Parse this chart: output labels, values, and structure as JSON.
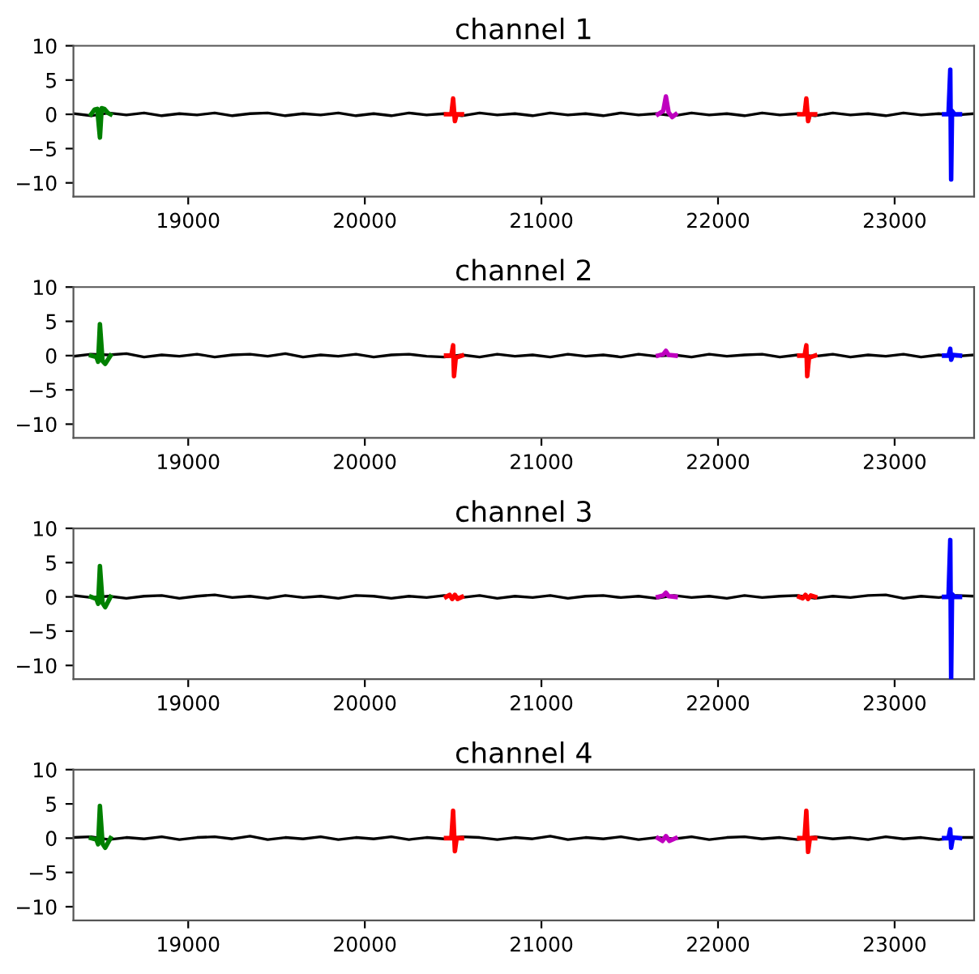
{
  "chart_data": [
    {
      "type": "line",
      "title": "channel 1",
      "xlim": [
        18350,
        23450
      ],
      "ylim": [
        -12,
        10
      ],
      "xticks": [
        19000,
        20000,
        21000,
        22000,
        23000
      ],
      "yticks": [
        10,
        5,
        0,
        -5,
        -10
      ],
      "series": [
        {
          "color": "#000000",
          "x": [
            18350,
            18450,
            18550,
            18650,
            18750,
            18850,
            18950,
            19050,
            19150,
            19250,
            19350,
            19450,
            19550,
            19650,
            19750,
            19850,
            19950,
            20050,
            20150,
            20250,
            20350,
            20450,
            20550,
            20650,
            20750,
            20850,
            20950,
            21050,
            21150,
            21250,
            21350,
            21450,
            21550,
            21650,
            21750,
            21850,
            21950,
            22050,
            22150,
            22250,
            22350,
            22450,
            22550,
            22650,
            22750,
            22850,
            22950,
            23050,
            23150,
            23250,
            23350,
            23450
          ],
          "values": [
            0.1,
            -0.2,
            0.2,
            -0.1,
            0.2,
            -0.2,
            0.1,
            -0.1,
            0.2,
            -0.2,
            0.1,
            0.2,
            -0.2,
            0.1,
            -0.1,
            0.2,
            -0.2,
            0.1,
            -0.2,
            0.2,
            -0.1,
            0.1,
            -0.2,
            0.2,
            -0.1,
            0.1,
            -0.2,
            0.2,
            -0.1,
            0.1,
            -0.2,
            0.2,
            -0.1,
            0.1,
            -0.2,
            0.2,
            -0.1,
            0.1,
            -0.2,
            0.2,
            -0.1,
            0.1,
            -0.2,
            0.2,
            -0.1,
            0.1,
            -0.2,
            0.2,
            -0.1,
            0.1,
            -0.1,
            0.1
          ]
        },
        {
          "color": "#008000",
          "x": [
            18450,
            18470,
            18485,
            18500,
            18510,
            18525,
            18545,
            18560
          ],
          "values": [
            0,
            0.7,
            0.8,
            -3.4,
            0.9,
            0.8,
            0.2,
            0
          ]
        },
        {
          "color": "#ff0000",
          "x": [
            20460,
            20490,
            20500,
            20510,
            20520,
            20550,
            21500,
            22460,
            22490,
            22500,
            22510,
            22520,
            22550
          ],
          "values": [
            0,
            0,
            2.3,
            -1,
            0,
            0,
            null,
            0,
            0,
            2.3,
            -1,
            0,
            0
          ]
        },
        {
          "color": "#bf00bf",
          "x": [
            21660,
            21690,
            21705,
            21720,
            21740,
            21760
          ],
          "values": [
            0,
            0.5,
            2.6,
            0.3,
            -0.4,
            0
          ]
        },
        {
          "color": "#0000ff",
          "x": [
            23280,
            23305,
            23315,
            23320,
            23325,
            23340,
            23370
          ],
          "values": [
            0,
            0,
            6.5,
            -9.5,
            0.5,
            0,
            0
          ]
        }
      ]
    },
    {
      "type": "line",
      "title": "channel 2",
      "xlim": [
        18350,
        23450
      ],
      "ylim": [
        -12,
        10
      ],
      "xticks": [
        19000,
        20000,
        21000,
        22000,
        23000
      ],
      "yticks": [
        10,
        5,
        0,
        -5,
        -10
      ],
      "series": [
        {
          "color": "#000000",
          "x": [
            18350,
            18450,
            18550,
            18650,
            18750,
            18850,
            18950,
            19050,
            19150,
            19250,
            19350,
            19450,
            19550,
            19650,
            19750,
            19850,
            19950,
            20050,
            20150,
            20250,
            20350,
            20450,
            20550,
            20650,
            20750,
            20850,
            20950,
            21050,
            21150,
            21250,
            21350,
            21450,
            21550,
            21650,
            21750,
            21850,
            21950,
            22050,
            22150,
            22250,
            22350,
            22450,
            22550,
            22650,
            22750,
            22850,
            22950,
            23050,
            23150,
            23250,
            23350,
            23450
          ],
          "values": [
            -0.1,
            0.2,
            0.1,
            0.3,
            -0.2,
            0.1,
            -0.1,
            0.2,
            -0.2,
            0.1,
            0.2,
            -0.1,
            0.3,
            -0.2,
            0.1,
            -0.1,
            0.2,
            -0.2,
            0.1,
            0.2,
            -0.1,
            -0.2,
            0.1,
            -0.2,
            0.2,
            -0.1,
            0.1,
            -0.2,
            0.2,
            -0.1,
            0.1,
            -0.2,
            0.2,
            -0.1,
            0.1,
            -0.2,
            0.2,
            -0.1,
            0.1,
            0.2,
            -0.2,
            0.1,
            -0.1,
            0.2,
            -0.2,
            0.1,
            -0.1,
            0.2,
            -0.2,
            0.1,
            -0.1,
            0.1
          ]
        },
        {
          "color": "#008000",
          "x": [
            18450,
            18480,
            18490,
            18500,
            18515,
            18530,
            18560
          ],
          "values": [
            0,
            -0.2,
            -0.9,
            4.6,
            -0.8,
            -1.2,
            0
          ]
        },
        {
          "color": "#ff0000",
          "x": [
            20460,
            20490,
            20500,
            20505,
            20515,
            20550,
            21500,
            22460,
            22490,
            22500,
            22505,
            22515,
            22550
          ],
          "values": [
            0,
            0,
            1.5,
            -3,
            -0.3,
            0,
            null,
            0,
            0,
            1.5,
            -3,
            -0.3,
            0
          ]
        },
        {
          "color": "#bf00bf",
          "x": [
            21660,
            21690,
            21705,
            21720,
            21760
          ],
          "values": [
            0,
            0.2,
            0.7,
            0.1,
            0
          ]
        },
        {
          "color": "#0000ff",
          "x": [
            23280,
            23305,
            23315,
            23320,
            23330,
            23370
          ],
          "values": [
            0,
            0,
            1,
            -0.6,
            0.1,
            0
          ]
        }
      ]
    },
    {
      "type": "line",
      "title": "channel 3",
      "xlim": [
        18350,
        23450
      ],
      "ylim": [
        -12,
        10
      ],
      "xticks": [
        19000,
        20000,
        21000,
        22000,
        23000
      ],
      "yticks": [
        10,
        5,
        0,
        -5,
        -10
      ],
      "series": [
        {
          "color": "#000000",
          "x": [
            18350,
            18450,
            18550,
            18650,
            18750,
            18850,
            18950,
            19050,
            19150,
            19250,
            19350,
            19450,
            19550,
            19650,
            19750,
            19850,
            19950,
            20050,
            20150,
            20250,
            20350,
            20450,
            20550,
            20650,
            20750,
            20850,
            20950,
            21050,
            21150,
            21250,
            21350,
            21450,
            21550,
            21650,
            21750,
            21850,
            21950,
            22050,
            22150,
            22250,
            22350,
            22450,
            22550,
            22650,
            22750,
            22850,
            22950,
            23050,
            23150,
            23250,
            23350,
            23450
          ],
          "values": [
            0.2,
            -0.1,
            0.1,
            -0.2,
            0.1,
            0.2,
            -0.2,
            0.1,
            0.3,
            -0.1,
            0.1,
            -0.2,
            0.2,
            -0.1,
            0.1,
            -0.2,
            0.2,
            0.1,
            -0.2,
            0.1,
            -0.1,
            0.2,
            -0.1,
            0.2,
            -0.2,
            0.1,
            -0.1,
            0.2,
            -0.2,
            0.1,
            0.2,
            -0.1,
            0.1,
            -0.2,
            0.2,
            -0.1,
            0.1,
            -0.2,
            0.2,
            -0.1,
            0.1,
            0.2,
            -0.2,
            0.1,
            -0.1,
            0.2,
            0.3,
            -0.2,
            0.1,
            -0.1,
            0.2,
            0.1
          ]
        },
        {
          "color": "#008000",
          "x": [
            18450,
            18480,
            18490,
            18500,
            18515,
            18530,
            18560
          ],
          "values": [
            0,
            -0.3,
            -1,
            4.5,
            -0.9,
            -1.5,
            0
          ]
        },
        {
          "color": "#ff0000",
          "x": [
            20460,
            20480,
            20495,
            20510,
            20525,
            20550,
            21500,
            22460,
            22480,
            22495,
            22510,
            22525,
            22550
          ],
          "values": [
            0,
            0.3,
            -0.3,
            0.3,
            -0.3,
            0,
            null,
            0,
            -0.2,
            0.3,
            -0.3,
            0.2,
            0
          ]
        },
        {
          "color": "#bf00bf",
          "x": [
            21660,
            21690,
            21705,
            21720,
            21760
          ],
          "values": [
            0,
            0.2,
            0.6,
            0.1,
            0
          ]
        },
        {
          "color": "#0000ff",
          "x": [
            23280,
            23305,
            23315,
            23320,
            23325,
            23340,
            23370
          ],
          "values": [
            0,
            0,
            8.3,
            -11.9,
            0.4,
            0,
            0
          ]
        }
      ]
    },
    {
      "type": "line",
      "title": "channel 4",
      "xlim": [
        18350,
        23450
      ],
      "ylim": [
        -12,
        10
      ],
      "xticks": [
        19000,
        20000,
        21000,
        22000,
        23000
      ],
      "yticks": [
        10,
        5,
        0,
        -5,
        -10
      ],
      "series": [
        {
          "color": "#000000",
          "x": [
            18350,
            18450,
            18550,
            18650,
            18750,
            18850,
            18950,
            19050,
            19150,
            19250,
            19350,
            19450,
            19550,
            19650,
            19750,
            19850,
            19950,
            20050,
            20150,
            20250,
            20350,
            20450,
            20550,
            20650,
            20750,
            20850,
            20950,
            21050,
            21150,
            21250,
            21350,
            21450,
            21550,
            21650,
            21750,
            21850,
            21950,
            22050,
            22150,
            22250,
            22350,
            22450,
            22550,
            22650,
            22750,
            22850,
            22950,
            23050,
            23150,
            23250,
            23350,
            23450
          ],
          "values": [
            0.1,
            0.2,
            -0.2,
            0.1,
            -0.1,
            0.2,
            -0.2,
            0.1,
            0.2,
            -0.1,
            0.3,
            -0.2,
            0.1,
            -0.1,
            0.2,
            -0.2,
            0.1,
            -0.1,
            0.2,
            -0.2,
            0.1,
            -0.1,
            0.2,
            0.1,
            -0.2,
            0.1,
            -0.1,
            0.3,
            -0.2,
            0.1,
            -0.1,
            0.2,
            -0.2,
            0.1,
            -0.1,
            0.2,
            -0.2,
            0.1,
            0.2,
            -0.1,
            0.1,
            -0.2,
            0.2,
            -0.1,
            0.1,
            -0.2,
            0.2,
            -0.1,
            0.1,
            -0.2,
            0.1,
            0.1
          ]
        },
        {
          "color": "#008000",
          "x": [
            18450,
            18480,
            18490,
            18500,
            18515,
            18530,
            18560
          ],
          "values": [
            0,
            -0.2,
            -0.9,
            4.7,
            -0.8,
            -1.4,
            0
          ]
        },
        {
          "color": "#ff0000",
          "x": [
            20460,
            20490,
            20500,
            20510,
            20520,
            20550,
            21500,
            22460,
            22490,
            22500,
            22510,
            22520,
            22550
          ],
          "values": [
            0,
            0,
            4,
            -1.9,
            0,
            0,
            null,
            0,
            0,
            4,
            -2,
            0,
            0
          ]
        },
        {
          "color": "#bf00bf",
          "x": [
            21660,
            21685,
            21705,
            21725,
            21760
          ],
          "values": [
            0,
            -0.4,
            0.3,
            -0.4,
            0
          ]
        },
        {
          "color": "#0000ff",
          "x": [
            23280,
            23305,
            23315,
            23320,
            23330,
            23370
          ],
          "values": [
            0,
            0,
            1.3,
            -1.4,
            0.1,
            0
          ]
        }
      ]
    }
  ]
}
